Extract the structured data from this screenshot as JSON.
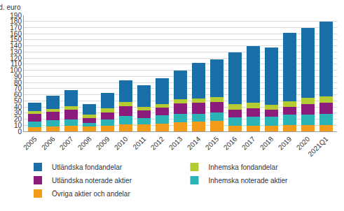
{
  "chart_data": {
    "type": "bar",
    "stacked": true,
    "y_label": "md. euro",
    "categories": [
      "2005",
      "2006",
      "2007",
      "2008",
      "2009",
      "2010",
      "2011",
      "2012",
      "2013",
      "2014",
      "2015",
      "2016",
      "2017",
      "2018",
      "2019",
      "2020",
      "2021Q1"
    ],
    "series": [
      {
        "name": "Övriga aktier och andelar",
        "color": "#f39c1b",
        "values": [
          7,
          8,
          9,
          8,
          9,
          12,
          12,
          13,
          15,
          16,
          17,
          9,
          9,
          9,
          10,
          10,
          10
        ]
      },
      {
        "name": "Inhemska noterade aktier",
        "color": "#2bb3b5",
        "values": [
          9,
          10,
          11,
          6,
          10,
          13,
          10,
          13,
          14,
          13,
          14,
          14,
          15,
          15,
          17,
          18,
          19
        ]
      },
      {
        "name": "Utländska noterade aktier",
        "color": "#8c1c7c",
        "values": [
          13,
          14,
          15,
          8,
          12,
          16,
          12,
          13,
          17,
          18,
          17,
          12,
          14,
          12,
          13,
          17,
          18
        ]
      },
      {
        "name": "Inhemska fondandelar",
        "color": "#b4cb34",
        "values": [
          4,
          5,
          6,
          5,
          7,
          7,
          6,
          6,
          7,
          7,
          8,
          10,
          9,
          8,
          9,
          10,
          10
        ]
      },
      {
        "name": "Utländska fondandelar",
        "color": "#1a6fa8",
        "values": [
          14,
          21,
          27,
          18,
          25,
          35,
          36,
          42,
          47,
          58,
          62,
          84,
          93,
          93,
          112,
          114,
          123
        ]
      }
    ],
    "ylim": [
      0,
      190
    ],
    "yticks": [
      0,
      10,
      20,
      30,
      40,
      50,
      60,
      70,
      80,
      90,
      100,
      110,
      120,
      130,
      140,
      150,
      160,
      170,
      180,
      190
    ],
    "grid": true,
    "legend": "bottom"
  }
}
